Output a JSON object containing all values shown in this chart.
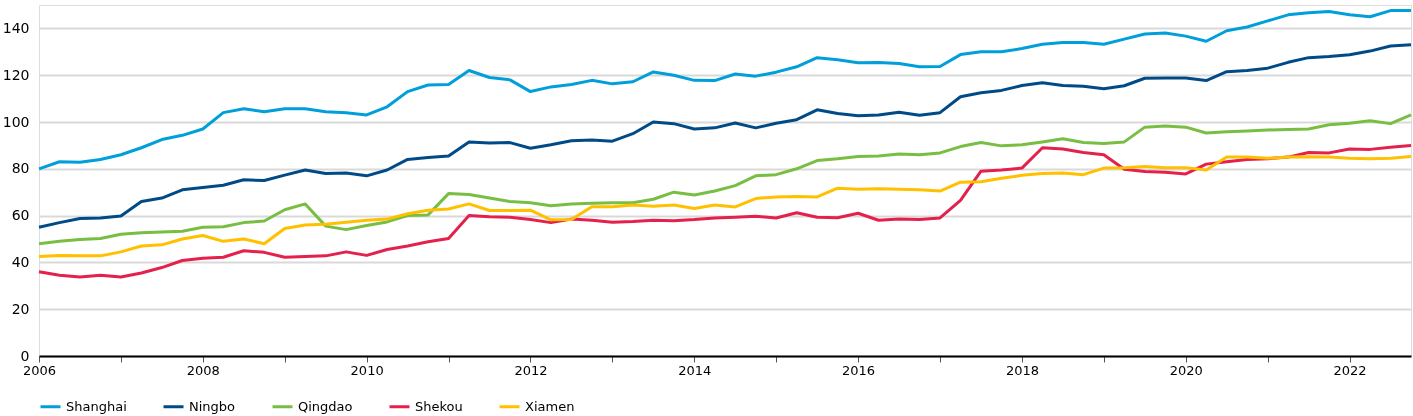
{
  "chart_data": {
    "type": "line",
    "x": [
      2006,
      2006.25,
      2006.5,
      2006.75,
      2007,
      2007.25,
      2007.5,
      2007.75,
      2008,
      2008.25,
      2008.5,
      2008.75,
      2009,
      2009.25,
      2009.5,
      2009.75,
      2010,
      2010.25,
      2010.5,
      2010.75,
      2011,
      2011.25,
      2011.5,
      2011.75,
      2012,
      2012.25,
      2012.5,
      2012.75,
      2013,
      2013.25,
      2013.5,
      2013.75,
      2014,
      2014.25,
      2014.5,
      2014.75,
      2015,
      2015.25,
      2015.5,
      2015.75,
      2016,
      2016.25,
      2016.5,
      2016.75,
      2017,
      2017.25,
      2017.5,
      2017.75,
      2018,
      2018.25,
      2018.5,
      2018.75,
      2019,
      2019.25,
      2019.5,
      2019.75,
      2020,
      2020.25,
      2020.5,
      2020.75,
      2021,
      2021.25,
      2021.5,
      2021.75,
      2022,
      2022.25,
      2022.5,
      2022.75
    ],
    "series": [
      {
        "name": "Shanghai",
        "color": "#009fda",
        "values": [
          80,
          83,
          82.8,
          84,
          86,
          89,
          92.5,
          94.3,
          97,
          104,
          105.7,
          104.4,
          105.7,
          105.7,
          104.4,
          104,
          103,
          106.5,
          113,
          115.8,
          116,
          122,
          119,
          118,
          113,
          115,
          116,
          117.8,
          116.3,
          117.2,
          121.4,
          120,
          117.8,
          117.7,
          120.5,
          119.6,
          121.3,
          123.6,
          127.5,
          126.6,
          125.3,
          125.4,
          125,
          123.6,
          123.7,
          128.8,
          130,
          130,
          131.4,
          133.2,
          134,
          134,
          133.2,
          135.4,
          137.6,
          138,
          136.7,
          134.5,
          139,
          140.6,
          143.2,
          145.8,
          146.7,
          147.2,
          145.8,
          145,
          147.6,
          147.6
        ]
      },
      {
        "name": "Ningbo",
        "color": "#004b87",
        "values": [
          55,
          57,
          58.8,
          59,
          59.8,
          66,
          67.5,
          71,
          72,
          73,
          75.3,
          75,
          77.3,
          79.5,
          78,
          78.2,
          77,
          79.5,
          84,
          84.8,
          85.5,
          91.5,
          91,
          91.2,
          88.8,
          90.3,
          92,
          92.3,
          91.8,
          95,
          100,
          99.3,
          97,
          97.5,
          99.6,
          97.5,
          99.5,
          101,
          105.2,
          103.6,
          102.7,
          103,
          104.2,
          102.9,
          104,
          110.8,
          112.5,
          113.5,
          115.6,
          116.8,
          115.6,
          115.3,
          114.2,
          115.5,
          118.7,
          118.8,
          118.8,
          117.7,
          121.5,
          122,
          123,
          125.5,
          127.5,
          128,
          128.7,
          130.3,
          132.5,
          133
        ]
      },
      {
        "name": "Qingdao",
        "color": "#78be43",
        "values": [
          48,
          49,
          49.8,
          50.2,
          52,
          52.7,
          53,
          53.3,
          55,
          55.2,
          57,
          57.7,
          62.5,
          65,
          55.5,
          54,
          55.8,
          57.3,
          60,
          60.3,
          69.4,
          69,
          67.5,
          66,
          65.5,
          64.2,
          65,
          65.3,
          65.5,
          65.5,
          67,
          70,
          68.8,
          70.5,
          72.8,
          77,
          77.5,
          80,
          83.5,
          84.3,
          85.3,
          85.5,
          86.3,
          86,
          86.8,
          89.5,
          91.2,
          89.8,
          90.3,
          91.5,
          92.8,
          91.2,
          90.8,
          91.5,
          97.8,
          98.3,
          97.8,
          95.3,
          95.8,
          96.2,
          96.6,
          96.8,
          97,
          98.8,
          99.5,
          100.5,
          99.3,
          103
        ]
      },
      {
        "name": "Shekou",
        "color": "#e4204b",
        "values": [
          36,
          34.5,
          33.8,
          34.5,
          33.8,
          35.5,
          37.8,
          40.8,
          41.8,
          42.2,
          45,
          44.3,
          42.2,
          42.5,
          42.8,
          44.5,
          43,
          45.5,
          47,
          48.8,
          50.2,
          60,
          59.5,
          59.3,
          58.3,
          57,
          58.5,
          58,
          57.2,
          57.5,
          58,
          57.8,
          58.3,
          59,
          59.3,
          59.7,
          59,
          61.2,
          59.3,
          59.1,
          61,
          58,
          58.5,
          58.3,
          59,
          66.5,
          79,
          79.5,
          80.3,
          89,
          88.5,
          87,
          86,
          79.8,
          78.8,
          78.5,
          77.8,
          82,
          83,
          84,
          84.3,
          85,
          87,
          86.8,
          88.5,
          88.3,
          89.2,
          90
        ]
      },
      {
        "name": "Xiamen",
        "color": "#ffc000",
        "values": [
          42.5,
          43,
          42.8,
          42.8,
          44.5,
          47,
          47.5,
          50,
          51.5,
          49,
          50,
          48,
          54.5,
          56,
          56.3,
          57.2,
          58,
          58.5,
          60.8,
          62.3,
          62.8,
          65,
          62.2,
          62.2,
          62.3,
          58.2,
          58.3,
          63.8,
          63.8,
          64.5,
          64,
          64.5,
          63,
          64.5,
          63.7,
          67.3,
          68,
          68.2,
          68,
          71.7,
          71.3,
          71.5,
          71.3,
          71,
          70.5,
          74.3,
          74.5,
          76,
          77.2,
          78,
          78.2,
          77.5,
          80.3,
          80.5,
          81,
          80.5,
          80.5,
          79.5,
          85,
          85,
          84.5,
          85,
          85.2,
          85,
          84.5,
          84.3,
          84.5,
          85.3
        ]
      }
    ],
    "xlim": [
      2006,
      2022.75
    ],
    "xticks": [
      2006,
      {
        "value": 2007,
        "label": null
      },
      2008,
      {
        "value": 2009,
        "label": null
      },
      2010,
      {
        "value": 2011,
        "label": null
      },
      2012,
      {
        "value": 2013,
        "label": null
      },
      2014,
      {
        "value": 2015,
        "label": null
      },
      2016,
      {
        "value": 2017,
        "label": null
      },
      2018,
      {
        "value": 2019,
        "label": null
      },
      2020,
      {
        "value": 2021,
        "label": null
      },
      2022
    ],
    "ylim": [
      0,
      150
    ],
    "yticks": [
      0,
      20,
      40,
      60,
      80,
      100,
      120,
      140
    ],
    "grid": "y",
    "legend": "bottom",
    "line_style": "solid",
    "marker": "none"
  }
}
